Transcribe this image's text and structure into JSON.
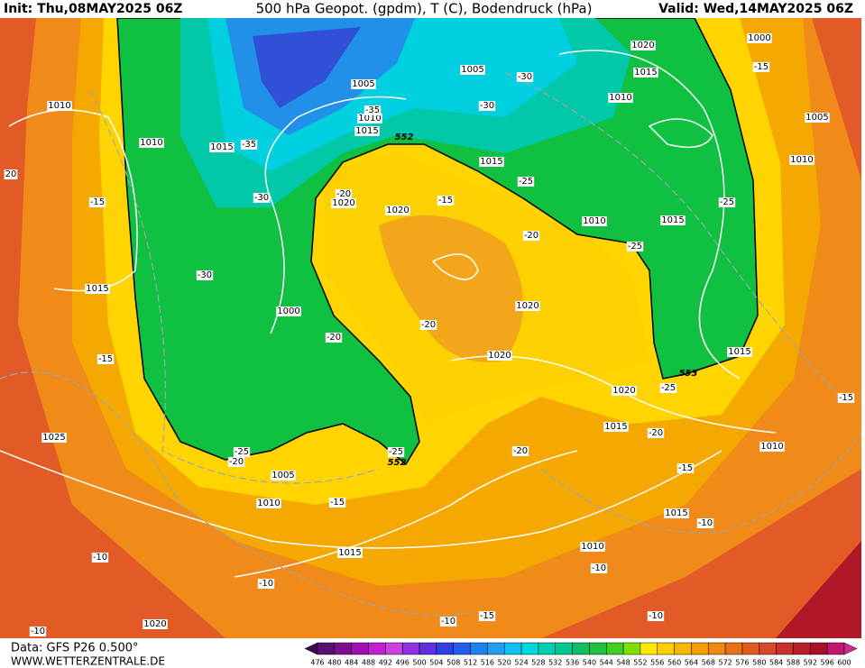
{
  "header": {
    "init": "Init: Thu,08MAY2025 06Z",
    "title": "500 hPa Geopot. (gpdm), T (C), Bodendruck (hPa)",
    "valid": "Valid: Wed,14MAY2025 06Z"
  },
  "map": {
    "pressure_labels": [
      "1010",
      "1010",
      "1015",
      "1005",
      "1010",
      "1015",
      "1020",
      "1020",
      "1005",
      "1020",
      "1015",
      "1010",
      "1000",
      "1005",
      "1010",
      "1015",
      "1010",
      "1015",
      "1015",
      "1000",
      "1020",
      "1020",
      "1020",
      "1015",
      "1015",
      "1010",
      "1025",
      "1005",
      "1010",
      "1015",
      "1015",
      "1010",
      "1020",
      "20"
    ],
    "temperature_labels": [
      "-35",
      "-30",
      "-30",
      "-35",
      "-25",
      "-15",
      "-20",
      "-30",
      "-15",
      "-15",
      "-25",
      "-20",
      "-25",
      "-30",
      "-20",
      "-20",
      "-15",
      "-25",
      "-20",
      "-20",
      "-15",
      "-25",
      "-20",
      "-25",
      "-15",
      "-10",
      "-10",
      "-10",
      "-10",
      "-10",
      "-15",
      "-10",
      "-10",
      "-15"
    ],
    "geopotential_labels": [
      "552",
      "553",
      "552"
    ]
  },
  "footer": {
    "data_source": "Data: GFS P26 0.500°",
    "website": "WWW.WETTERZENTRALE.DE"
  },
  "colorbar": {
    "labels": [
      476,
      480,
      484,
      488,
      492,
      496,
      500,
      504,
      508,
      512,
      516,
      520,
      524,
      528,
      532,
      536,
      540,
      544,
      548,
      552,
      556,
      560,
      564,
      568,
      572,
      576,
      580,
      584,
      588,
      592,
      596,
      600
    ],
    "colors": [
      "#3a0a50",
      "#5a1070",
      "#7a1090",
      "#a010b0",
      "#c020d0",
      "#d040e0",
      "#9030e0",
      "#6030e0",
      "#3040e0",
      "#2060e8",
      "#2080f0",
      "#20a0f0",
      "#10c0f0",
      "#00d8e0",
      "#00d0b0",
      "#00c890",
      "#10c060",
      "#20c040",
      "#40d020",
      "#80e000",
      "#ffe800",
      "#ffd000",
      "#f8b800",
      "#f5a000",
      "#f08a10",
      "#e87018",
      "#e05a20",
      "#d84828",
      "#c83028",
      "#b81e28",
      "#a81028",
      "#c01870",
      "#d02890"
    ]
  }
}
